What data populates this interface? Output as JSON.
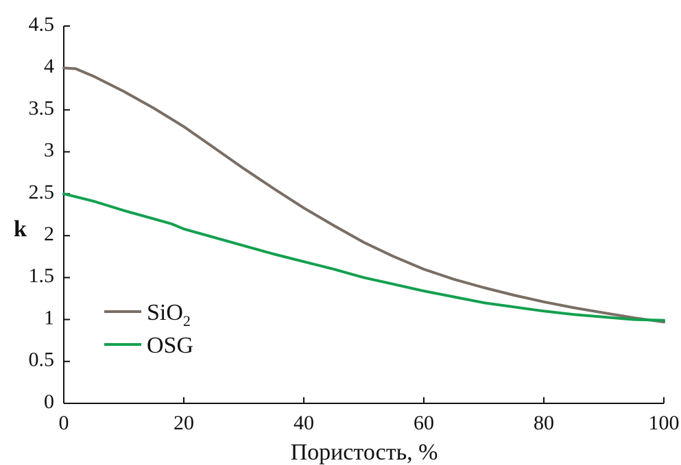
{
  "chart_data": {
    "type": "line",
    "title": "",
    "xlabel": "Пористость, %",
    "ylabel": "k",
    "xlim": [
      0,
      100
    ],
    "ylim": [
      0,
      4.5
    ],
    "x_ticks": [
      "0",
      "20",
      "40",
      "60",
      "80",
      "100"
    ],
    "y_ticks": [
      "0",
      "0.5",
      "1",
      "1.5",
      "2",
      "2.5",
      "3",
      "3.5",
      "4",
      "4.5"
    ],
    "grid": false,
    "legend_position": "bottom-left",
    "series": [
      {
        "name": "SiO",
        "name_subscript": "2",
        "color": "#7a6e64",
        "x": [
          0,
          2,
          5,
          10,
          15,
          20,
          25,
          30,
          35,
          40,
          45,
          50,
          55,
          60,
          65,
          70,
          75,
          80,
          85,
          90,
          95,
          100
        ],
        "y": [
          4.0,
          3.99,
          3.9,
          3.72,
          3.52,
          3.3,
          3.05,
          2.8,
          2.56,
          2.33,
          2.12,
          1.92,
          1.75,
          1.6,
          1.48,
          1.38,
          1.29,
          1.21,
          1.14,
          1.08,
          1.02,
          0.97
        ]
      },
      {
        "name": "OSG",
        "color": "#13a050",
        "x": [
          0,
          5,
          10,
          15,
          18,
          20,
          25,
          30,
          35,
          40,
          45,
          50,
          55,
          60,
          65,
          70,
          75,
          80,
          85,
          90,
          95,
          100
        ],
        "y": [
          2.5,
          2.41,
          2.3,
          2.2,
          2.14,
          2.08,
          1.98,
          1.88,
          1.78,
          1.69,
          1.6,
          1.5,
          1.42,
          1.34,
          1.27,
          1.2,
          1.15,
          1.1,
          1.06,
          1.03,
          1.0,
          0.99
        ]
      }
    ]
  }
}
